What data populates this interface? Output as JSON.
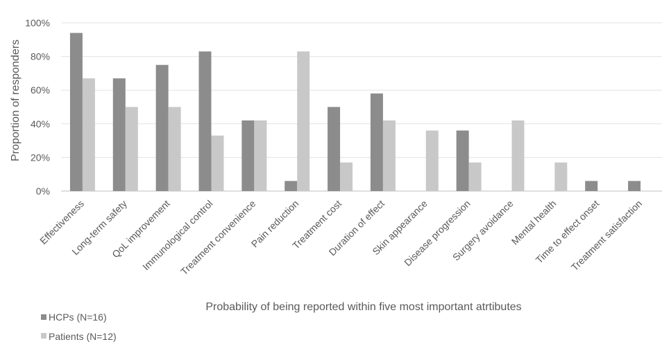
{
  "chart_data": {
    "type": "bar",
    "ylabel": "Proportion of responders",
    "xlabel": "Probability of being reported within five most important atrtibutes",
    "ylim": [
      0,
      100
    ],
    "y_ticks": [
      "0%",
      "20%",
      "40%",
      "60%",
      "80%",
      "100%"
    ],
    "y_tick_values": [
      0,
      20,
      40,
      60,
      80,
      100
    ],
    "grid": "horizontal",
    "legend_position": "bottom-left",
    "categories": [
      "Effectiveness",
      "Long-term safety",
      "QoL improvement",
      "Immunological control",
      "Treatment convenience",
      "Pain reduction",
      "Treatment cost",
      "Duration of effect",
      "Skin appearance",
      "Disease progression",
      "Surgery avoidance",
      "Mental health",
      "Time to effect onset",
      "Treatment satisfaction"
    ],
    "series": [
      {
        "name": "HCPs (N=16)",
        "color": "#8c8c8c",
        "values": [
          94,
          67,
          75,
          83,
          42,
          6,
          50,
          58,
          0,
          36,
          0,
          0,
          6,
          6
        ]
      },
      {
        "name": "Patients (N=12)",
        "color": "#c8c8c8",
        "values": [
          67,
          50,
          50,
          33,
          42,
          83,
          17,
          42,
          36,
          17,
          42,
          17,
          0,
          0
        ]
      }
    ]
  }
}
